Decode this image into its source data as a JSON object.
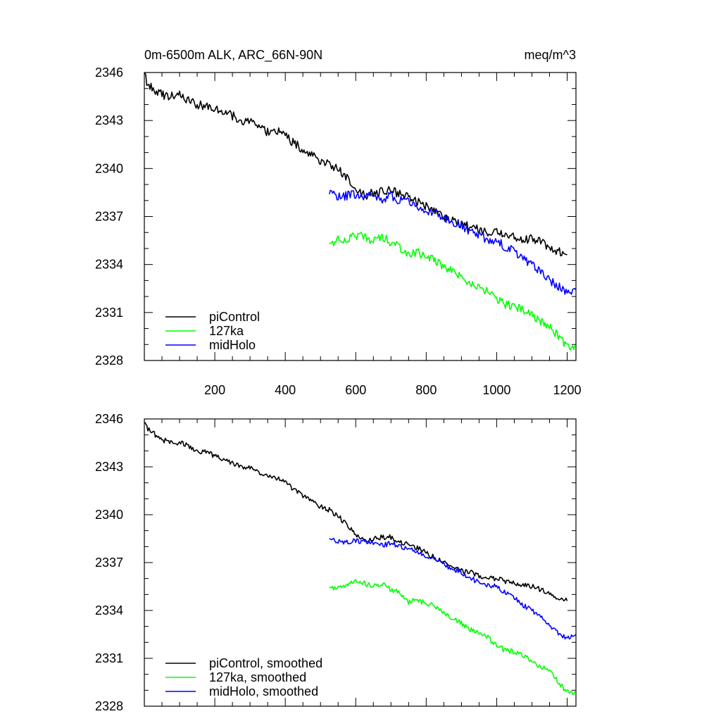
{
  "chart_data": [
    {
      "type": "line",
      "title": "0m-6500m ALK, ARC_66N-90N",
      "units": "meq/m^3",
      "xlabel": "",
      "ylabel": "",
      "xlim": [
        0,
        1225
      ],
      "ylim": [
        2328,
        2346
      ],
      "xticks": [
        200,
        400,
        600,
        800,
        1000,
        1200
      ],
      "xtick_labels": [
        "200",
        "400",
        "600",
        "800",
        "1000",
        "1200"
      ],
      "yticks": [
        2328,
        2331,
        2334,
        2337,
        2340,
        2343,
        2346
      ],
      "ytick_labels": [
        "2328",
        "2331",
        "2334",
        "2337",
        "2340",
        "2343",
        "2346"
      ],
      "legend_position": "bottom-left",
      "series": [
        {
          "name": "piControl",
          "color": "#000000",
          "x": [
            1,
            10,
            25,
            50,
            75,
            100,
            125,
            150,
            175,
            200,
            225,
            250,
            275,
            300,
            325,
            350,
            375,
            400,
            425,
            450,
            475,
            500,
            525,
            550,
            575,
            600,
            625,
            650,
            675,
            700,
            725,
            750,
            775,
            800,
            825,
            850,
            875,
            900,
            925,
            950,
            975,
            1000,
            1025,
            1050,
            1075,
            1100,
            1125,
            1150,
            1175,
            1200
          ],
          "values": [
            2346.0,
            2345.2,
            2345.0,
            2344.6,
            2344.5,
            2344.6,
            2344.3,
            2344.0,
            2343.9,
            2343.8,
            2343.5,
            2343.3,
            2343.0,
            2342.9,
            2342.6,
            2342.3,
            2342.4,
            2342.0,
            2341.6,
            2341.2,
            2340.9,
            2340.5,
            2340.3,
            2339.9,
            2339.5,
            2338.8,
            2338.3,
            2338.5,
            2338.6,
            2338.6,
            2338.4,
            2338.2,
            2337.9,
            2337.6,
            2337.3,
            2337.0,
            2336.7,
            2336.5,
            2336.4,
            2336.2,
            2336.0,
            2336.0,
            2335.8,
            2335.7,
            2335.6,
            2335.6,
            2335.4,
            2335.1,
            2334.8,
            2334.6
          ]
        },
        {
          "name": "127ka",
          "color": "#00ff00",
          "x": [
            525,
            550,
            575,
            600,
            625,
            650,
            675,
            700,
            725,
            750,
            775,
            800,
            825,
            850,
            875,
            900,
            925,
            950,
            975,
            1000,
            1025,
            1050,
            1075,
            1100,
            1125,
            1150,
            1175,
            1200,
            1225
          ],
          "values": [
            2335.3,
            2335.5,
            2335.6,
            2335.8,
            2335.7,
            2335.5,
            2335.8,
            2335.3,
            2335.1,
            2334.5,
            2334.8,
            2334.4,
            2334.3,
            2333.9,
            2333.5,
            2333.2,
            2332.8,
            2332.6,
            2332.3,
            2331.8,
            2331.5,
            2331.4,
            2331.2,
            2330.8,
            2330.5,
            2330.2,
            2329.5,
            2328.9,
            2328.9
          ]
        },
        {
          "name": "midHolo",
          "color": "#0000ff",
          "x": [
            525,
            550,
            575,
            600,
            625,
            650,
            675,
            700,
            725,
            750,
            775,
            800,
            825,
            850,
            875,
            900,
            925,
            950,
            975,
            1000,
            1025,
            1050,
            1075,
            1100,
            1125,
            1150,
            1175,
            1200,
            1225
          ],
          "values": [
            2338.4,
            2338.2,
            2338.3,
            2338.4,
            2338.3,
            2338.2,
            2338.1,
            2338.3,
            2338.0,
            2337.9,
            2337.6,
            2337.4,
            2337.3,
            2336.9,
            2336.6,
            2336.4,
            2336.0,
            2335.8,
            2335.6,
            2335.5,
            2335.1,
            2334.8,
            2334.3,
            2334.0,
            2333.6,
            2333.0,
            2332.6,
            2332.3,
            2332.4
          ]
        }
      ]
    },
    {
      "type": "line",
      "title": "",
      "xlabel": "",
      "ylabel": "",
      "xlim": [
        0,
        1225
      ],
      "ylim": [
        2328,
        2346
      ],
      "xticks": [
        200,
        400,
        600,
        800,
        1000,
        1200
      ],
      "yticks": [
        2328,
        2331,
        2334,
        2337,
        2340,
        2343,
        2346
      ],
      "ytick_labels": [
        "2328",
        "2331",
        "2334",
        "2337",
        "2340",
        "2343",
        "2346"
      ],
      "legend_position": "bottom-left",
      "series": [
        {
          "name": "piControl, smoothed",
          "color": "#000000",
          "x": [
            1,
            10,
            25,
            50,
            75,
            100,
            125,
            150,
            175,
            200,
            225,
            250,
            275,
            300,
            325,
            350,
            375,
            400,
            425,
            450,
            475,
            500,
            525,
            550,
            575,
            600,
            625,
            650,
            675,
            700,
            725,
            750,
            775,
            800,
            825,
            850,
            875,
            900,
            925,
            950,
            975,
            1000,
            1025,
            1050,
            1075,
            1100,
            1125,
            1150,
            1175,
            1200
          ],
          "values": [
            2345.8,
            2345.4,
            2345.1,
            2344.7,
            2344.5,
            2344.5,
            2344.3,
            2344.0,
            2343.9,
            2343.7,
            2343.5,
            2343.2,
            2343.0,
            2342.9,
            2342.6,
            2342.4,
            2342.3,
            2342.0,
            2341.6,
            2341.2,
            2340.9,
            2340.5,
            2340.3,
            2339.9,
            2339.4,
            2338.8,
            2338.4,
            2338.5,
            2338.6,
            2338.6,
            2338.3,
            2338.1,
            2337.9,
            2337.6,
            2337.3,
            2337.0,
            2336.7,
            2336.5,
            2336.4,
            2336.2,
            2336.0,
            2336.0,
            2335.8,
            2335.7,
            2335.6,
            2335.5,
            2335.3,
            2335.0,
            2334.8,
            2334.6
          ]
        },
        {
          "name": "127ka, smoothed",
          "color": "#00ff00",
          "x": [
            525,
            550,
            575,
            600,
            625,
            650,
            675,
            700,
            725,
            750,
            775,
            800,
            825,
            850,
            875,
            900,
            925,
            950,
            975,
            1000,
            1025,
            1050,
            1075,
            1100,
            1125,
            1150,
            1175,
            1200,
            1225
          ],
          "values": [
            2335.4,
            2335.5,
            2335.6,
            2335.8,
            2335.7,
            2335.5,
            2335.7,
            2335.3,
            2335.1,
            2334.5,
            2334.7,
            2334.4,
            2334.3,
            2333.9,
            2333.5,
            2333.2,
            2332.8,
            2332.6,
            2332.3,
            2331.8,
            2331.5,
            2331.4,
            2331.2,
            2330.8,
            2330.5,
            2330.2,
            2329.5,
            2328.9,
            2328.9
          ]
        },
        {
          "name": "midHolo, smoothed",
          "color": "#0000ff",
          "x": [
            525,
            550,
            575,
            600,
            625,
            650,
            675,
            700,
            725,
            750,
            775,
            800,
            825,
            850,
            875,
            900,
            925,
            950,
            975,
            1000,
            1025,
            1050,
            1075,
            1100,
            1125,
            1150,
            1175,
            1200,
            1225
          ],
          "values": [
            2338.5,
            2338.3,
            2338.3,
            2338.4,
            2338.3,
            2338.2,
            2338.1,
            2338.2,
            2338.0,
            2337.9,
            2337.6,
            2337.4,
            2337.2,
            2336.9,
            2336.6,
            2336.4,
            2336.0,
            2335.8,
            2335.6,
            2335.5,
            2335.1,
            2334.8,
            2334.3,
            2334.0,
            2333.6,
            2333.0,
            2332.6,
            2332.3,
            2332.5
          ]
        }
      ]
    }
  ]
}
